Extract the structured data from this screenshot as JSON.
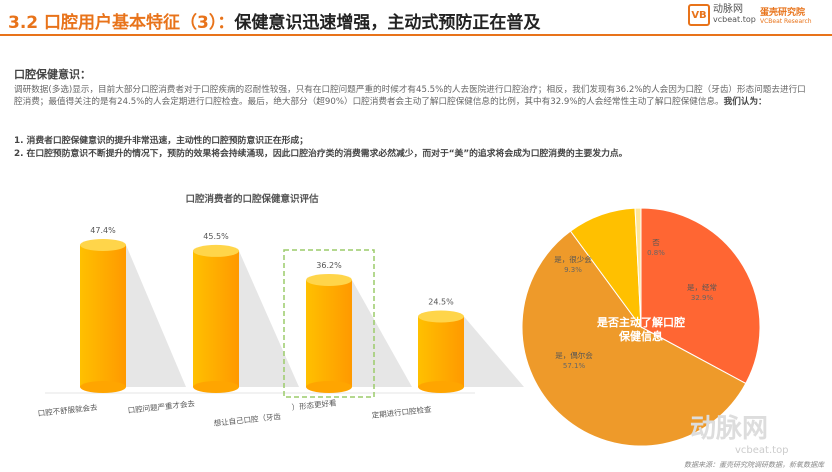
{
  "header": {
    "section": "3.2 口腔用户基本特征（3）：",
    "title": "保健意识迅速增强，主动式预防正在普及"
  },
  "logos": {
    "vcbeat_cn": "动脉网",
    "vcbeat_url": "vcbeat.top",
    "vbr_name": "蛋壳研究院",
    "vbr_en": "VCBeat Research"
  },
  "body": {
    "heading": "口腔保健意识：",
    "paragraph": "调研数据(多选)显示，目前大部分口腔消费者对于口腔疾病的忍耐性较强，只有在口腔问题严重的时候才有45.5%的人去医院进行口腔治疗；相反，我们发现有36.2%的人会因为口腔（牙齿）形态问题去进行口腔消费；最值得关注的是有24.5%的人会定期进行口腔检查。最后，绝大部分（超90%）口腔消费者会主动了解口腔保健信息的比例，其中有32.9%的人会经常性主动了解口腔保健信息。",
    "conclusion": "我们认为：",
    "points": [
      "1.  消费者口腔保健意识的提升非常迅速，主动性的口腔预防意识正在形成；",
      "2.  在口腔预防意识不断提升的情况下，预防的效果将会持续涌现，因此口腔治疗类的消费需求必然减少，而对于“美”的追求将会成为口腔消费的主要发力点。"
    ]
  },
  "chart_data": [
    {
      "type": "bar",
      "title": "口腔消费者的口腔保健意识评估",
      "categories": [
        "口腔不舒服就会去",
        "口腔问题严重才会去",
        "想让自己口腔（牙齿）形态更好看",
        "定期进行口腔检查"
      ],
      "values": [
        47.4,
        45.5,
        36.2,
        24.5
      ],
      "labels": [
        "47.4%",
        "45.5%",
        "36.2%",
        "24.5%"
      ],
      "ylim": [
        0,
        50
      ],
      "grid": false,
      "highlight_index": 2,
      "colors": {
        "bar": "#FFA500",
        "highlight": "#9BCB6A"
      }
    },
    {
      "type": "pie",
      "title": "是否主动了解口腔保健信息",
      "slices": [
        {
          "label": "是，经常",
          "value": 32.9,
          "text": "32.9%",
          "color": "#FF6633"
        },
        {
          "label": "是，偶尔会",
          "value": 57.1,
          "text": "57.1%",
          "color": "#EE9A2A"
        },
        {
          "label": "是，很少会",
          "value": 9.3,
          "text": "9.3%",
          "color": "#FFC000"
        },
        {
          "label": "否",
          "value": 0.8,
          "text": "0.8%",
          "color": "#FFE699"
        }
      ]
    }
  ],
  "footer": {
    "source": "数据来源：蛋壳研究院调研数据，新氧数据库"
  }
}
